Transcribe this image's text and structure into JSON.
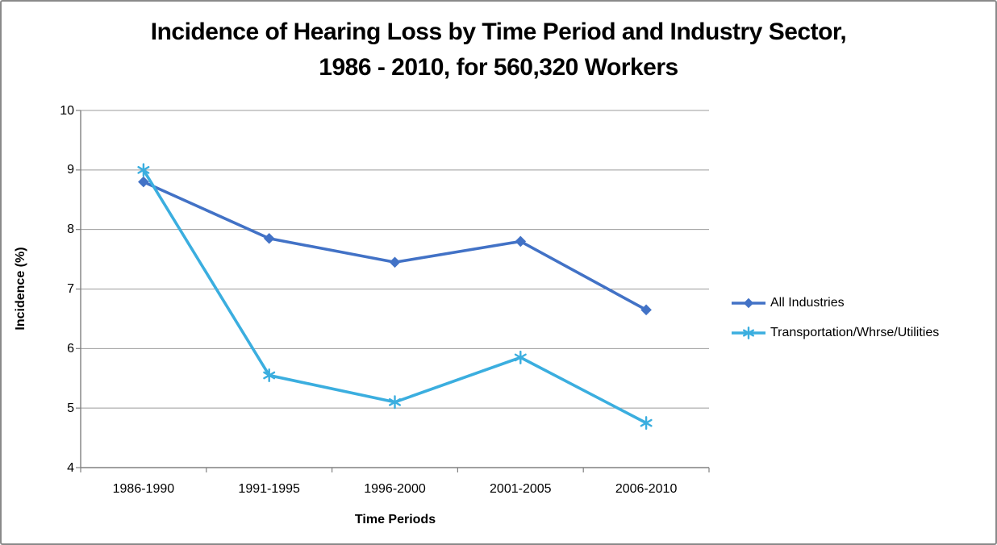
{
  "title": {
    "line1": "Incidence of Hearing Loss by Time Period and Industry Sector,",
    "line2": "1986 - 2010, for 560,320 Workers"
  },
  "chart_data": {
    "type": "line",
    "title": "Incidence of Hearing Loss by Time Period and Industry Sector, 1986 - 2010, for 560,320 Workers",
    "xlabel": "Time Periods",
    "ylabel": "Incidence (%)",
    "categories": [
      "1986-1990",
      "1991-1995",
      "1996-2000",
      "2001-2005",
      "2006-2010"
    ],
    "series": [
      {
        "name": "All Industries",
        "marker": "diamond",
        "color": "#4272C6",
        "values": [
          8.8,
          7.85,
          7.45,
          7.8,
          6.65
        ]
      },
      {
        "name": "Transportation/Whrse/Utilities",
        "marker": "asterisk",
        "color": "#3BAEDF",
        "values": [
          9.0,
          5.55,
          5.1,
          5.85,
          4.75
        ]
      }
    ],
    "ylim": [
      4,
      10
    ],
    "ytick_step": 1,
    "y_tick_labels": [
      "10",
      "9",
      "8",
      "7",
      "6",
      "5",
      "4"
    ],
    "grid": "horizontal-only",
    "grid_color": "#9B9B9B",
    "axis_color": "#808080",
    "text_color": "#000000",
    "background": "#FFFFFF",
    "frame_border_color": "#8A8A8A",
    "legend_position": "right-middle",
    "legend_border": "none"
  }
}
